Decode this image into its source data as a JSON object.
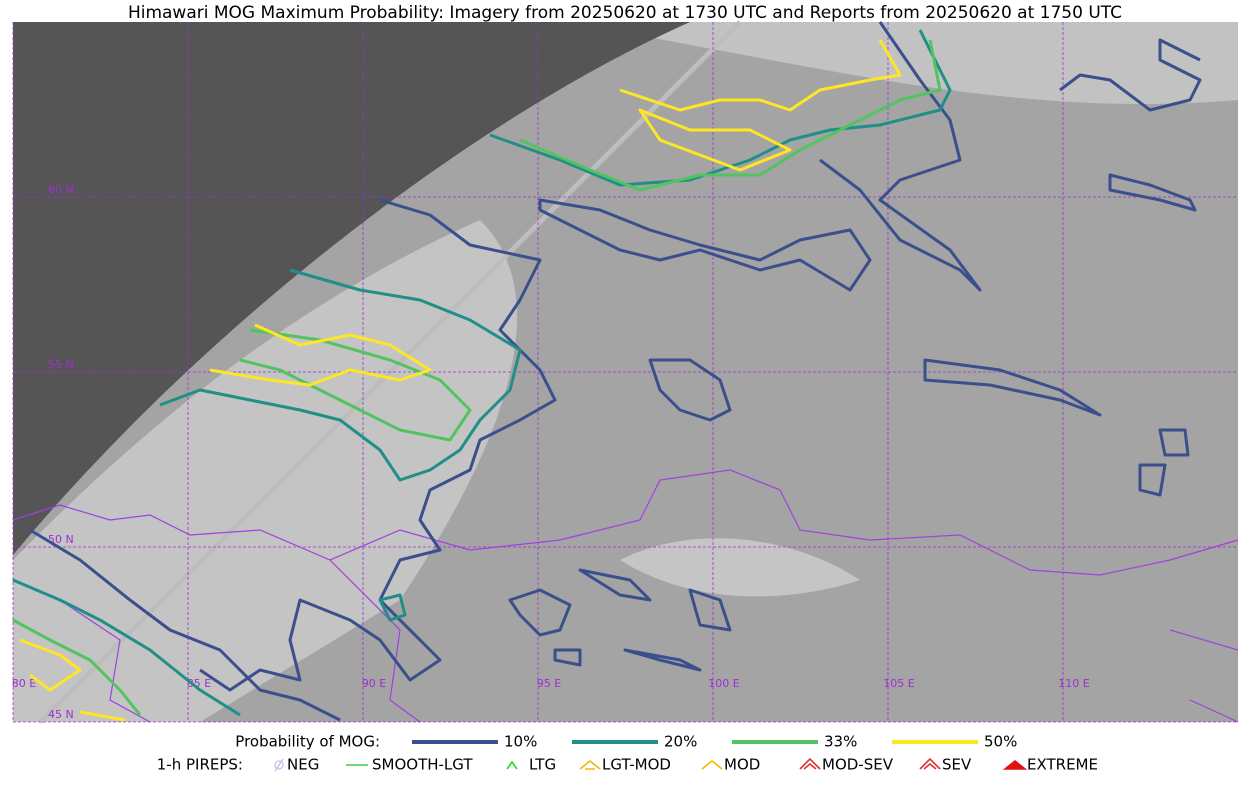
{
  "title": "Himawari MOG Maximum Probability: Imagery from 20250620 at 1730 UTC and Reports from 20250620 at 1750 UTC",
  "map": {
    "lat_labels": [
      "60 N",
      "55 N",
      "50 N",
      "45 N"
    ],
    "lon_labels": [
      "80 E",
      "85 E",
      "90 E",
      "95 E",
      "100 E",
      "105 E",
      "110 E"
    ]
  },
  "legend": {
    "probability": {
      "label": "Probability of MOG:",
      "items": [
        {
          "label": "10%",
          "color": "#3b4f8c"
        },
        {
          "label": "20%",
          "color": "#1f8f88"
        },
        {
          "label": "33%",
          "color": "#52c45f"
        },
        {
          "label": "50%",
          "color": "#fde725"
        }
      ]
    },
    "pireps": {
      "label": "1-h PIREPS:",
      "items": [
        {
          "label": "NEG",
          "color": "#c8c8f0"
        },
        {
          "label": "SMOOTH-LGT",
          "color": "#44cc44"
        },
        {
          "label": "LTG",
          "color": "#22dd22"
        },
        {
          "label": "LGT-MOD",
          "color": "#f5b800"
        },
        {
          "label": "MOD",
          "color": "#f5b800"
        },
        {
          "label": "MOD-SEV",
          "color": "#e03030"
        },
        {
          "label": "SEV",
          "color": "#e03030"
        },
        {
          "label": "EXTREME",
          "color": "#e01010"
        }
      ]
    }
  }
}
